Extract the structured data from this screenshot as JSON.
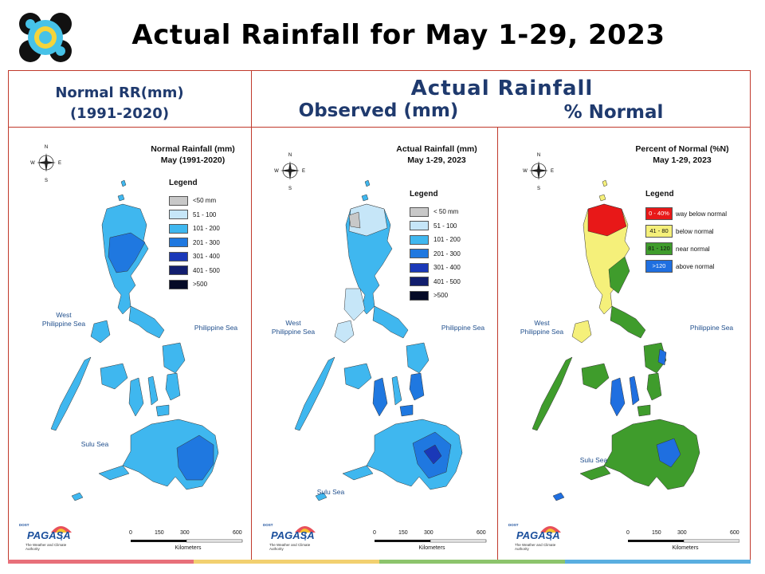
{
  "title": "Actual Rainfall for May 1-29, 2023",
  "headers": {
    "normal_line1": "Normal RR(mm)",
    "normal_line2": "(1991-2020)",
    "actual": "Actual Rainfall",
    "observed": "Observed (mm)",
    "percent": "% Normal"
  },
  "maps": [
    {
      "title_line1": "Normal Rainfall (mm)",
      "title_line2": "May (1991-2020)",
      "legend_title": "Legend",
      "legend": [
        {
          "label": "<50 mm",
          "color": "#c8c8c8"
        },
        {
          "label": "51 - 100",
          "color": "#c6e6f8"
        },
        {
          "label": "101 - 200",
          "color": "#3fb7ef"
        },
        {
          "label": "201 - 300",
          "color": "#1f78e0"
        },
        {
          "label": "301 - 400",
          "color": "#1a38b8"
        },
        {
          "label": "401 - 500",
          "color": "#121e6e"
        },
        {
          "label": ">500",
          "color": "#050a26"
        }
      ]
    },
    {
      "title_line1": "Actual Rainfall (mm)",
      "title_line2": "May 1-29, 2023",
      "legend_title": "Legend",
      "legend": [
        {
          "label": "< 50 mm",
          "color": "#c8c8c8"
        },
        {
          "label": "51 - 100",
          "color": "#c6e6f8"
        },
        {
          "label": "101 - 200",
          "color": "#3fb7ef"
        },
        {
          "label": "201 - 300",
          "color": "#1f78e0"
        },
        {
          "label": "301 - 400",
          "color": "#1a38b8"
        },
        {
          "label": "401 - 500",
          "color": "#121e6e"
        },
        {
          "label": ">500",
          "color": "#050a26"
        }
      ]
    },
    {
      "title_line1": "Percent of Normal (%N)",
      "title_line2": "May 1-29, 2023",
      "legend_title": "Legend",
      "legend": [
        {
          "range": "0 - 40%",
          "label": "way below normal",
          "color": "#e81818"
        },
        {
          "range": "41 - 80",
          "label": "below normal",
          "color": "#f5f07a"
        },
        {
          "range": "81 - 120",
          "label": "near normal",
          "color": "#3f9c2c"
        },
        {
          "range": ">120",
          "label": "above normal",
          "color": "#1f6fe0"
        }
      ]
    }
  ],
  "labels": {
    "west_sea_line1": "West",
    "west_sea_line2": "Philippine Sea",
    "philippine_sea": "Philippine Sea",
    "sulu_sea": "Sulu Sea",
    "scale_0": "0",
    "scale_150": "150",
    "scale_300": "300",
    "scale_600": "600",
    "kilometers": "Kilometers",
    "compass_n": "N",
    "compass_s": "S",
    "compass_e": "E",
    "compass_w": "W",
    "brand": "PAGASA",
    "brand_dost": "DOST",
    "brand_sub": "The Weather and Climate Authority"
  },
  "colors": {
    "title_blue": "#1f3a6e",
    "frame_red": "#c0392b",
    "stripe": [
      "#e8707a",
      "#f2d070",
      "#8cc46c",
      "#5aaee0"
    ]
  }
}
